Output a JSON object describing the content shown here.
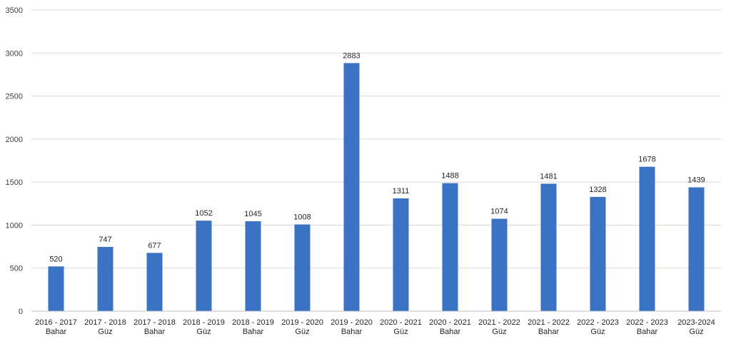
{
  "chart_data": {
    "type": "bar",
    "categories": [
      [
        "2016 - 2017",
        "Bahar"
      ],
      [
        "2017 - 2018",
        "Güz"
      ],
      [
        "2017 - 2018",
        "Bahar"
      ],
      [
        "2018 - 2019",
        "Güz"
      ],
      [
        "2018 - 2019",
        "Bahar"
      ],
      [
        "2019 - 2020",
        "Güz"
      ],
      [
        "2019 - 2020",
        "Bahar"
      ],
      [
        "2020 - 2021",
        "Güz"
      ],
      [
        "2020 - 2021",
        "Bahar"
      ],
      [
        "2021 - 2022",
        "Güz"
      ],
      [
        "2021 - 2022",
        "Bahar"
      ],
      [
        "2022 - 2023",
        "Güz"
      ],
      [
        "2022 - 2023",
        "Bahar"
      ],
      [
        "2023-2024",
        "Güz"
      ]
    ],
    "values": [
      520,
      747,
      677,
      1052,
      1045,
      1008,
      2883,
      1311,
      1488,
      1074,
      1481,
      1328,
      1678,
      1439
    ],
    "ylim": [
      0,
      3500
    ],
    "yticks": [
      0,
      500,
      1000,
      1500,
      2000,
      2500,
      3000,
      3500
    ],
    "grid": true,
    "legend": "none",
    "colors": {
      "bar": "#3a72c4"
    }
  }
}
